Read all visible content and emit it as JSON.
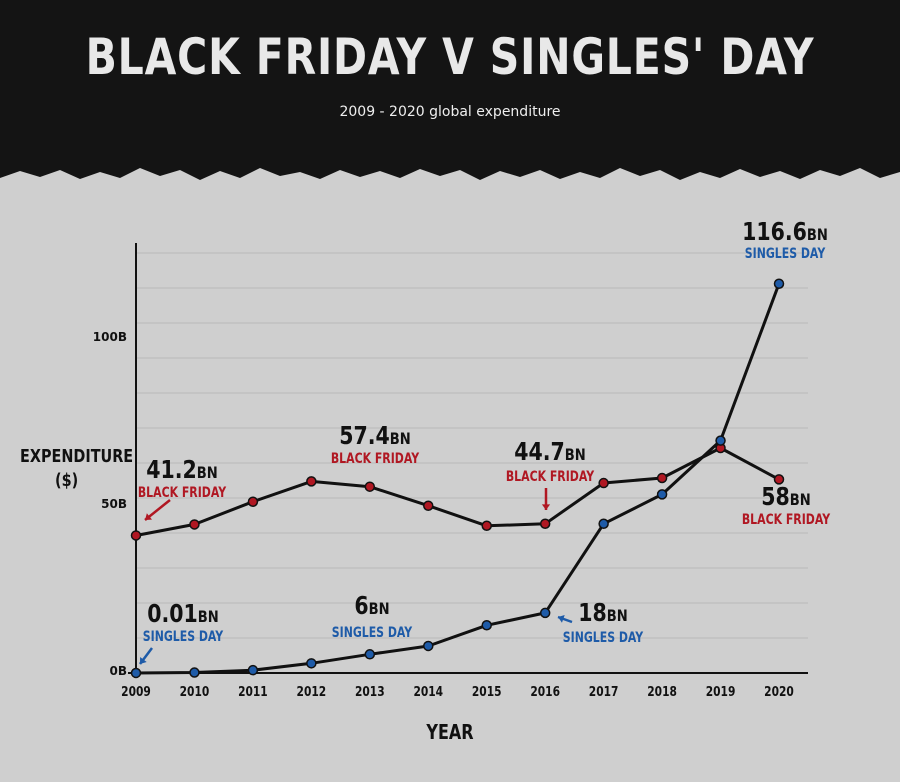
{
  "title": "BLACK FRIDAY V SINGLES' DAY",
  "subtitle": "2009 - 2020 global expenditure",
  "colors": {
    "black_friday": "#b01722",
    "singles_day": "#1e5ba8",
    "line": "#111111",
    "header": "#141414",
    "background": "#cfcfcf"
  },
  "chart_data": {
    "type": "line",
    "title": "BLACK FRIDAY V SINGLES' DAY",
    "subtitle": "2009 - 2020 global expenditure",
    "xlabel": "YEAR",
    "ylabel": "EXPENDITURE ($)",
    "ylabel_lines": [
      "EXPENDITURE",
      "($)"
    ],
    "categories": [
      "2009",
      "2010",
      "2011",
      "2012",
      "2013",
      "2014",
      "2015",
      "2016",
      "2017",
      "2018",
      "2019",
      "2020"
    ],
    "ylim": [
      0,
      130
    ],
    "y_ticks": [
      {
        "value": 0,
        "label": "0B"
      },
      {
        "value": 50,
        "label": "50B"
      },
      {
        "value": 100,
        "label": "100B"
      }
    ],
    "grid": true,
    "series": [
      {
        "name": "BLACK FRIDAY",
        "color": "#b01722",
        "values": [
          41.2,
          44.5,
          51.3,
          57.4,
          55.8,
          50.1,
          44.1,
          44.7,
          56.9,
          58.4,
          67.4,
          58
        ]
      },
      {
        "name": "SINGLES DAY",
        "color": "#1e5ba8",
        "values": [
          0.01,
          0.14,
          0.85,
          2.9,
          5.6,
          8.1,
          14.3,
          18,
          44.7,
          53.5,
          69.6,
          116.6
        ]
      }
    ],
    "annotations": [
      {
        "value_text": "41.2",
        "unit": "BN",
        "label": "BLACK FRIDAY",
        "series": 0,
        "index": 0
      },
      {
        "value_text": "57.4",
        "unit": "BN",
        "label": "BLACK FRIDAY",
        "series": 0,
        "index": 3
      },
      {
        "value_text": "44.7",
        "unit": "BN",
        "label": "BLACK FRIDAY",
        "series": 0,
        "index": 7
      },
      {
        "value_text": "58",
        "unit": "BN",
        "label": "BLACK FRIDAY",
        "series": 0,
        "index": 11
      },
      {
        "value_text": "0.01",
        "unit": "BN",
        "label": "SINGLES DAY",
        "series": 1,
        "index": 0
      },
      {
        "value_text": "6",
        "unit": "BN",
        "label": "SINGLES DAY",
        "series": 1,
        "index": 4
      },
      {
        "value_text": "18",
        "unit": "BN",
        "label": "SINGLES DAY",
        "series": 1,
        "index": 7
      },
      {
        "value_text": "116.6",
        "unit": "BN",
        "label": "SINGLES DAY",
        "series": 1,
        "index": 11
      }
    ]
  }
}
